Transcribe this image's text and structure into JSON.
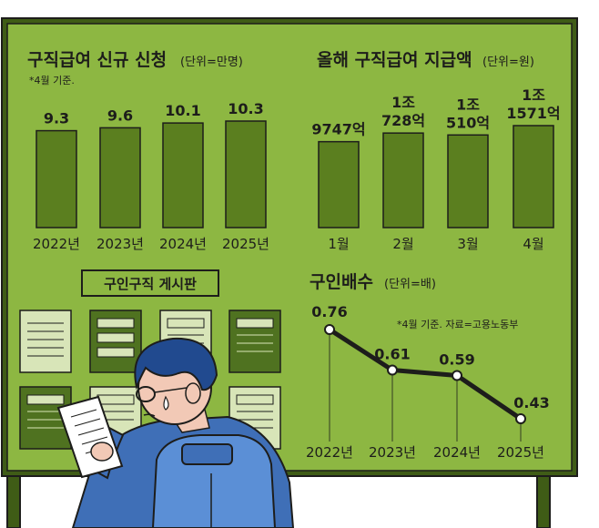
{
  "colors": {
    "board": "#8db742",
    "bar": "#5b7f1f",
    "outline": "#1d1d1b",
    "frame": "#3f5c16",
    "paper_light": "#d8e5b8",
    "paper_dark": "#4f7220",
    "jacket": "#3f6fb7",
    "hair": "#214a8f",
    "skin": "#f2c9b6"
  },
  "chart_data": [
    {
      "type": "bar",
      "title": "구직급여 신규 신청",
      "unit": "(단위=만명)",
      "note": "*4월 기준.",
      "categories": [
        "2022년",
        "2023년",
        "2024년",
        "2025년"
      ],
      "values": [
        9.3,
        9.6,
        10.1,
        10.3
      ],
      "value_labels": [
        "9.3",
        "9.6",
        "10.1",
        "10.3"
      ]
    },
    {
      "type": "bar",
      "title": "올해 구직급여 지급액",
      "unit": "(단위=원)",
      "categories": [
        "1월",
        "2월",
        "3월",
        "4월"
      ],
      "values": [
        974700000000,
        1072800000000,
        1051000000000,
        1157100000000
      ],
      "value_labels": [
        [
          "9747억"
        ],
        [
          "1조",
          "728억"
        ],
        [
          "1조",
          "510억"
        ],
        [
          "1조",
          "1571억"
        ]
      ]
    },
    {
      "type": "line",
      "title": "구인배수",
      "unit": "(단위=배)",
      "note": "*4월 기준. 자료=고용노동부",
      "categories": [
        "2022년",
        "2023년",
        "2024년",
        "2025년"
      ],
      "values": [
        0.76,
        0.61,
        0.59,
        0.43
      ],
      "value_labels": [
        "0.76",
        "0.61",
        "0.59",
        "0.43"
      ]
    }
  ],
  "board_sign": "구인구직 게시판"
}
